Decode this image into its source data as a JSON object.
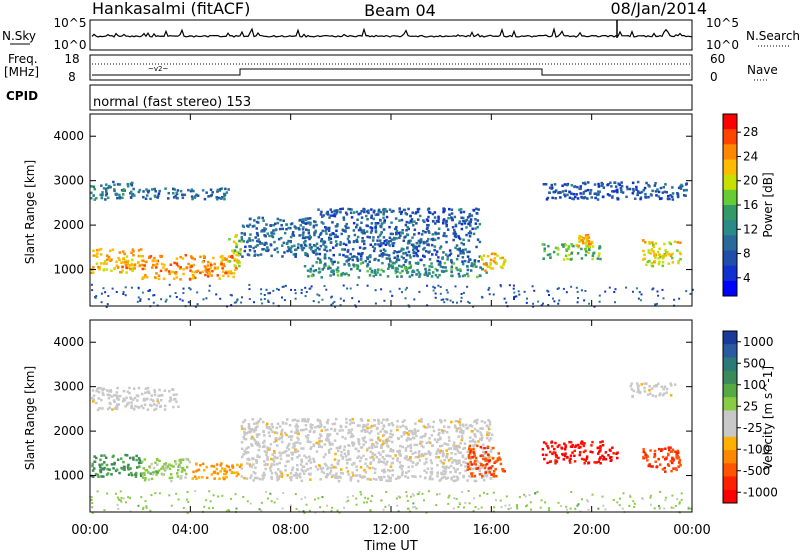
{
  "header": {
    "station": "Hankasalmi (fitACF)",
    "beam": "Beam 04",
    "date": "08/Jan/2014"
  },
  "noise_panel": {
    "left_label": "N.Sky",
    "right_label": "N.Search",
    "left_ticks": [
      "10^5",
      "10^0"
    ],
    "right_ticks": [
      "10^5",
      "10^0"
    ]
  },
  "freq_panel": {
    "left_label_1": "Freq.",
    "left_label_2": "[MHz]",
    "left_ticks": [
      "18",
      "8"
    ],
    "right_label": "Nave",
    "right_ticks": [
      "60",
      "0"
    ]
  },
  "cpid_panel": {
    "label": "CPID",
    "mode_text": "normal (fast stereo) 153"
  },
  "time_axis": {
    "label": "Time UT",
    "ticks": [
      "00:00",
      "04:00",
      "08:00",
      "12:00",
      "16:00",
      "20:00",
      "00:00"
    ]
  },
  "power_colorbar": {
    "label": "Power [dB]",
    "ticks": [
      "28",
      "24",
      "20",
      "16",
      "12",
      "8",
      "4"
    ],
    "colors": [
      "#ff0000",
      "#ff4400",
      "#ff8800",
      "#ffbb00",
      "#c8e000",
      "#66cc33",
      "#339966",
      "#2a8a8a",
      "#2a6a9a",
      "#1f4faa",
      "#1030d0",
      "#0000ff"
    ]
  },
  "velocity_colorbar": {
    "label": "Velocity [m s^-1]",
    "ticks": [
      "1000",
      "500",
      "100",
      "25",
      "-25",
      "-100",
      "-500",
      "-1000"
    ],
    "colors": [
      "#1a3a9a",
      "#2a5aa0",
      "#2a7a7a",
      "#3a8a5a",
      "#55aa44",
      "#88cc44",
      "#c8c8c8",
      "#c8c8c8",
      "#ffb000",
      "#ff8800",
      "#ff5500",
      "#ff2000",
      "#ff0000"
    ]
  },
  "chart_data": [
    {
      "type": "heatmap",
      "panel": "power",
      "ylabel": "Slant Range [km]",
      "xlabel": "Time UT",
      "x_range_hours": [
        0,
        24
      ],
      "ylim": [
        180,
        4500
      ],
      "yticks": [
        1000,
        2000,
        3000,
        4000
      ],
      "regions": [
        {
          "t0": 0.0,
          "t1": 1.8,
          "r0": 2600,
          "r1": 3000,
          "p": 10
        },
        {
          "t0": 1.8,
          "t1": 5.5,
          "r0": 2600,
          "r1": 2850,
          "p": 8
        },
        {
          "t0": 0.0,
          "t1": 2.0,
          "r0": 950,
          "r1": 1500,
          "p": 22
        },
        {
          "t0": 2.0,
          "t1": 5.8,
          "r0": 800,
          "r1": 1350,
          "p": 24
        },
        {
          "t0": 5.5,
          "t1": 6.0,
          "r0": 1100,
          "r1": 1800,
          "p": 18
        },
        {
          "t0": 6.0,
          "t1": 9.0,
          "r0": 1300,
          "r1": 2200,
          "p": 8
        },
        {
          "t0": 8.5,
          "t1": 15.8,
          "r0": 850,
          "r1": 1200,
          "p": 12
        },
        {
          "t0": 9.0,
          "t1": 15.5,
          "r0": 1200,
          "r1": 2400,
          "p": 7
        },
        {
          "t0": 15.5,
          "t1": 16.5,
          "r0": 1000,
          "r1": 1400,
          "p": 22
        },
        {
          "t0": 18.0,
          "t1": 20.3,
          "r0": 1250,
          "r1": 1600,
          "p": 16
        },
        {
          "t0": 19.4,
          "t1": 20.0,
          "r0": 1550,
          "r1": 1800,
          "p": 22
        },
        {
          "t0": 22.0,
          "t1": 23.5,
          "r0": 1100,
          "r1": 1700,
          "p": 20
        },
        {
          "t0": 18.0,
          "t1": 23.8,
          "r0": 2600,
          "r1": 3000,
          "p": 6
        }
      ]
    },
    {
      "type": "heatmap",
      "panel": "velocity",
      "ylabel": "Slant Range [km]",
      "xlabel": "Time UT",
      "x_range_hours": [
        0,
        24
      ],
      "ylim": [
        180,
        4500
      ],
      "yticks": [
        1000,
        2000,
        3000,
        4000
      ],
      "regions": [
        {
          "t0": 0.0,
          "t1": 3.5,
          "r0": 2500,
          "r1": 3000,
          "v": 0
        },
        {
          "t0": 0.0,
          "t1": 2.0,
          "r0": 1000,
          "r1": 1500,
          "v": 300
        },
        {
          "t0": 2.0,
          "t1": 4.0,
          "r0": 900,
          "r1": 1400,
          "v": 80
        },
        {
          "t0": 4.0,
          "t1": 6.0,
          "r0": 950,
          "r1": 1300,
          "v": -100
        },
        {
          "t0": 6.0,
          "t1": 16.0,
          "r0": 900,
          "r1": 2300,
          "v": 0
        },
        {
          "t0": 15.0,
          "t1": 16.5,
          "r0": 1000,
          "r1": 1700,
          "v": -150
        },
        {
          "t0": 18.0,
          "t1": 21.0,
          "r0": 1300,
          "r1": 1800,
          "v": -600
        },
        {
          "t0": 21.5,
          "t1": 23.3,
          "r0": 2800,
          "r1": 3100,
          "v": 0
        },
        {
          "t0": 22.0,
          "t1": 23.5,
          "r0": 1100,
          "r1": 1700,
          "v": -200
        }
      ]
    }
  ]
}
